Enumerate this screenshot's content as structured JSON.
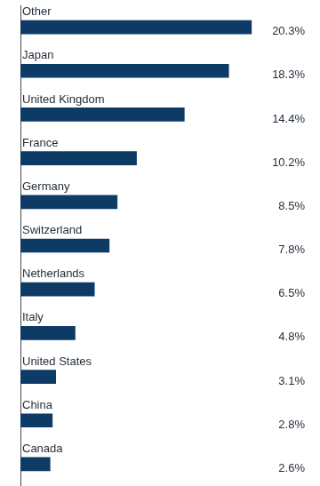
{
  "chart_data": {
    "type": "bar",
    "orientation": "horizontal",
    "categories": [
      "Other",
      "Japan",
      "United Kingdom",
      "France",
      "Germany",
      "Switzerland",
      "Netherlands",
      "Italy",
      "United States",
      "China",
      "Canada"
    ],
    "values": [
      20.3,
      18.3,
      14.4,
      10.2,
      8.5,
      7.8,
      6.5,
      4.8,
      3.1,
      2.8,
      2.6
    ],
    "value_labels": [
      "20.3%",
      "18.3%",
      "14.4%",
      "10.2%",
      "8.5%",
      "7.8%",
      "6.5%",
      "4.8%",
      "3.1%",
      "2.8%",
      "2.6%"
    ],
    "color": "#0e3a66",
    "xlim": [
      0,
      25
    ],
    "data_labels": true,
    "tick_labels": false,
    "grid": false
  }
}
